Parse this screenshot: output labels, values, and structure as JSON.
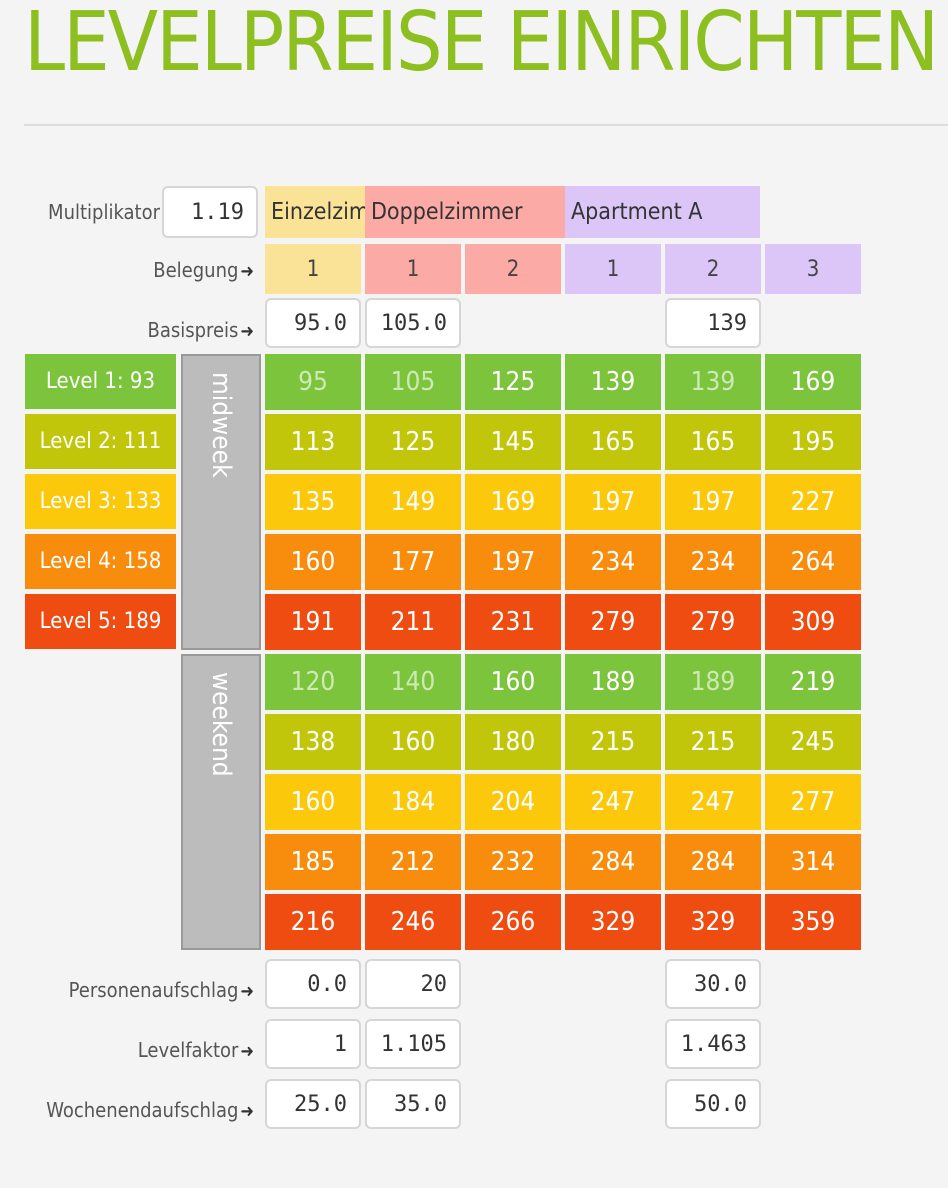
{
  "title": "LEVELPREISE EINRICHTEN",
  "multiplier": {
    "label": "Multiplikator",
    "value": "1.19"
  },
  "room_types": [
    {
      "name": "Einzelzimmer",
      "color": "#fae296"
    },
    {
      "name": "Doppelzimmer",
      "color": "#fcaaa6"
    },
    {
      "name": "Apartment A",
      "color": "#dcc6f8"
    }
  ],
  "occupancy": {
    "label": "Belegung",
    "values": [
      "1",
      "1",
      "2",
      "1",
      "2",
      "3"
    ]
  },
  "base_price": {
    "label": "Basispreis",
    "values": [
      "95.0",
      "105.0",
      "",
      "",
      "139",
      ""
    ]
  },
  "levels": [
    {
      "label": "Level 1: 93",
      "color": "#7cc43c"
    },
    {
      "label": "Level 2: 111",
      "color": "#c2c60a"
    },
    {
      "label": "Level 3: 133",
      "color": "#fcc80c"
    },
    {
      "label": "Level 4: 158",
      "color": "#f88c0c"
    },
    {
      "label": "Level 5: 189",
      "color": "#ef4c12"
    }
  ],
  "blocks": [
    {
      "label": "midweek",
      "rows": [
        [
          "95",
          "105",
          "125",
          "139",
          "139",
          "169"
        ],
        [
          "113",
          "125",
          "145",
          "165",
          "165",
          "195"
        ],
        [
          "135",
          "149",
          "169",
          "197",
          "197",
          "227"
        ],
        [
          "160",
          "177",
          "197",
          "234",
          "234",
          "264"
        ],
        [
          "191",
          "211",
          "231",
          "279",
          "279",
          "309"
        ]
      ]
    },
    {
      "label": "weekend",
      "rows": [
        [
          "120",
          "140",
          "160",
          "189",
          "189",
          "219"
        ],
        [
          "138",
          "160",
          "180",
          "215",
          "215",
          "245"
        ],
        [
          "160",
          "184",
          "204",
          "247",
          "247",
          "277"
        ],
        [
          "185",
          "212",
          "232",
          "284",
          "284",
          "314"
        ],
        [
          "216",
          "246",
          "266",
          "329",
          "329",
          "359"
        ]
      ]
    }
  ],
  "surcharge": {
    "label": "Personenaufschlag",
    "values": [
      "0.0",
      "20",
      "",
      "",
      "30.0",
      ""
    ]
  },
  "level_factor": {
    "label": "Levelfaktor",
    "values": [
      "1",
      "1.105",
      "",
      "",
      "1.463",
      ""
    ]
  },
  "weekend_surcharge": {
    "label": "Wochenendaufschlag",
    "values": [
      "25.0",
      "35.0",
      "",
      "",
      "50.0",
      ""
    ]
  },
  "muted_text_color": "#cfe9b6"
}
